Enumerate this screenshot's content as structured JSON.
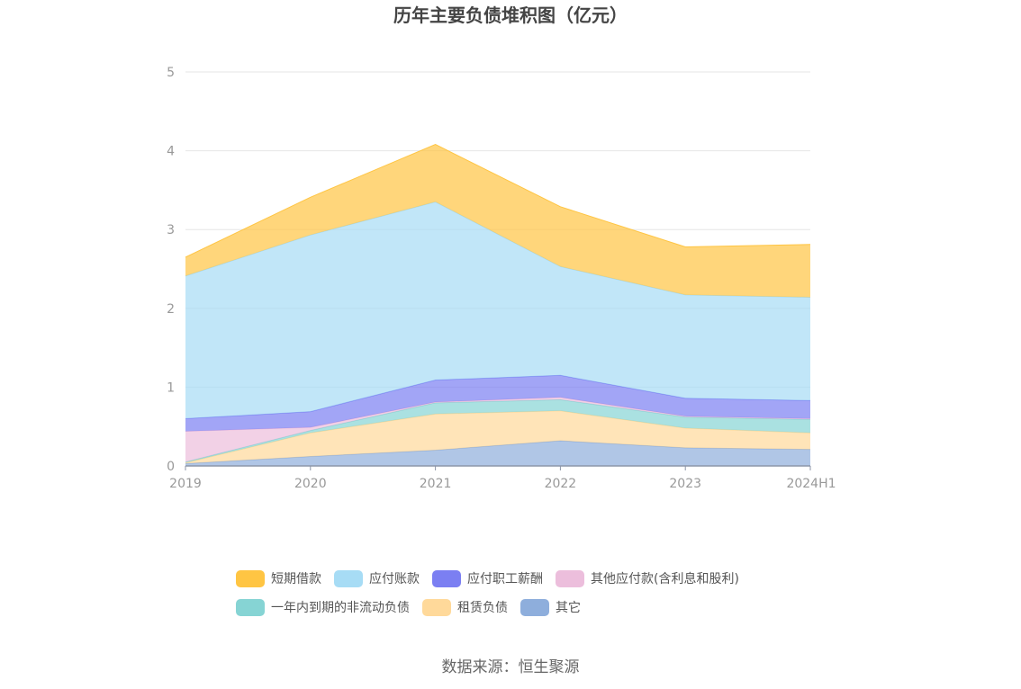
{
  "chart_data": {
    "type": "area",
    "stacked": true,
    "title": "历年主要负债堆积图（亿元）",
    "x": [
      "2019",
      "2020",
      "2021",
      "2022",
      "2023",
      "2024H1"
    ],
    "ylim": [
      0,
      5
    ],
    "yticks": [
      "0",
      "1",
      "2",
      "3",
      "4",
      "5"
    ],
    "grid": true,
    "legend_position": "bottom",
    "series": [
      {
        "name": "其它",
        "color": "#8eaedc",
        "values": [
          0.03,
          0.12,
          0.2,
          0.32,
          0.23,
          0.21
        ]
      },
      {
        "name": "租赁负债",
        "color": "#ffd99a",
        "values": [
          0.01,
          0.3,
          0.46,
          0.38,
          0.25,
          0.21
        ]
      },
      {
        "name": "一年内到期的非流动负债",
        "color": "#86d4d4",
        "values": [
          0.01,
          0.03,
          0.14,
          0.14,
          0.14,
          0.17
        ]
      },
      {
        "name": "其他应付款(含利息和股利)",
        "color": "#ecbedc",
        "values": [
          0.39,
          0.04,
          0.01,
          0.03,
          0.01,
          0.01
        ]
      },
      {
        "name": "应付职工薪酬",
        "color": "#7b7ff2",
        "values": [
          0.16,
          0.2,
          0.28,
          0.28,
          0.23,
          0.23
        ]
      },
      {
        "name": "应付账款",
        "color": "#a7dcf5",
        "values": [
          1.81,
          2.24,
          2.26,
          1.38,
          1.31,
          1.31
        ]
      },
      {
        "name": "短期借款",
        "color": "#ffc543",
        "values": [
          0.24,
          0.48,
          0.73,
          0.76,
          0.61,
          0.67
        ]
      }
    ],
    "legend_order": [
      "短期借款",
      "应付账款",
      "应付职工薪酬",
      "其他应付款(含利息和股利)",
      "一年内到期的非流动负债",
      "租赁负债",
      "其它"
    ]
  },
  "source": "数据来源：恒生聚源"
}
